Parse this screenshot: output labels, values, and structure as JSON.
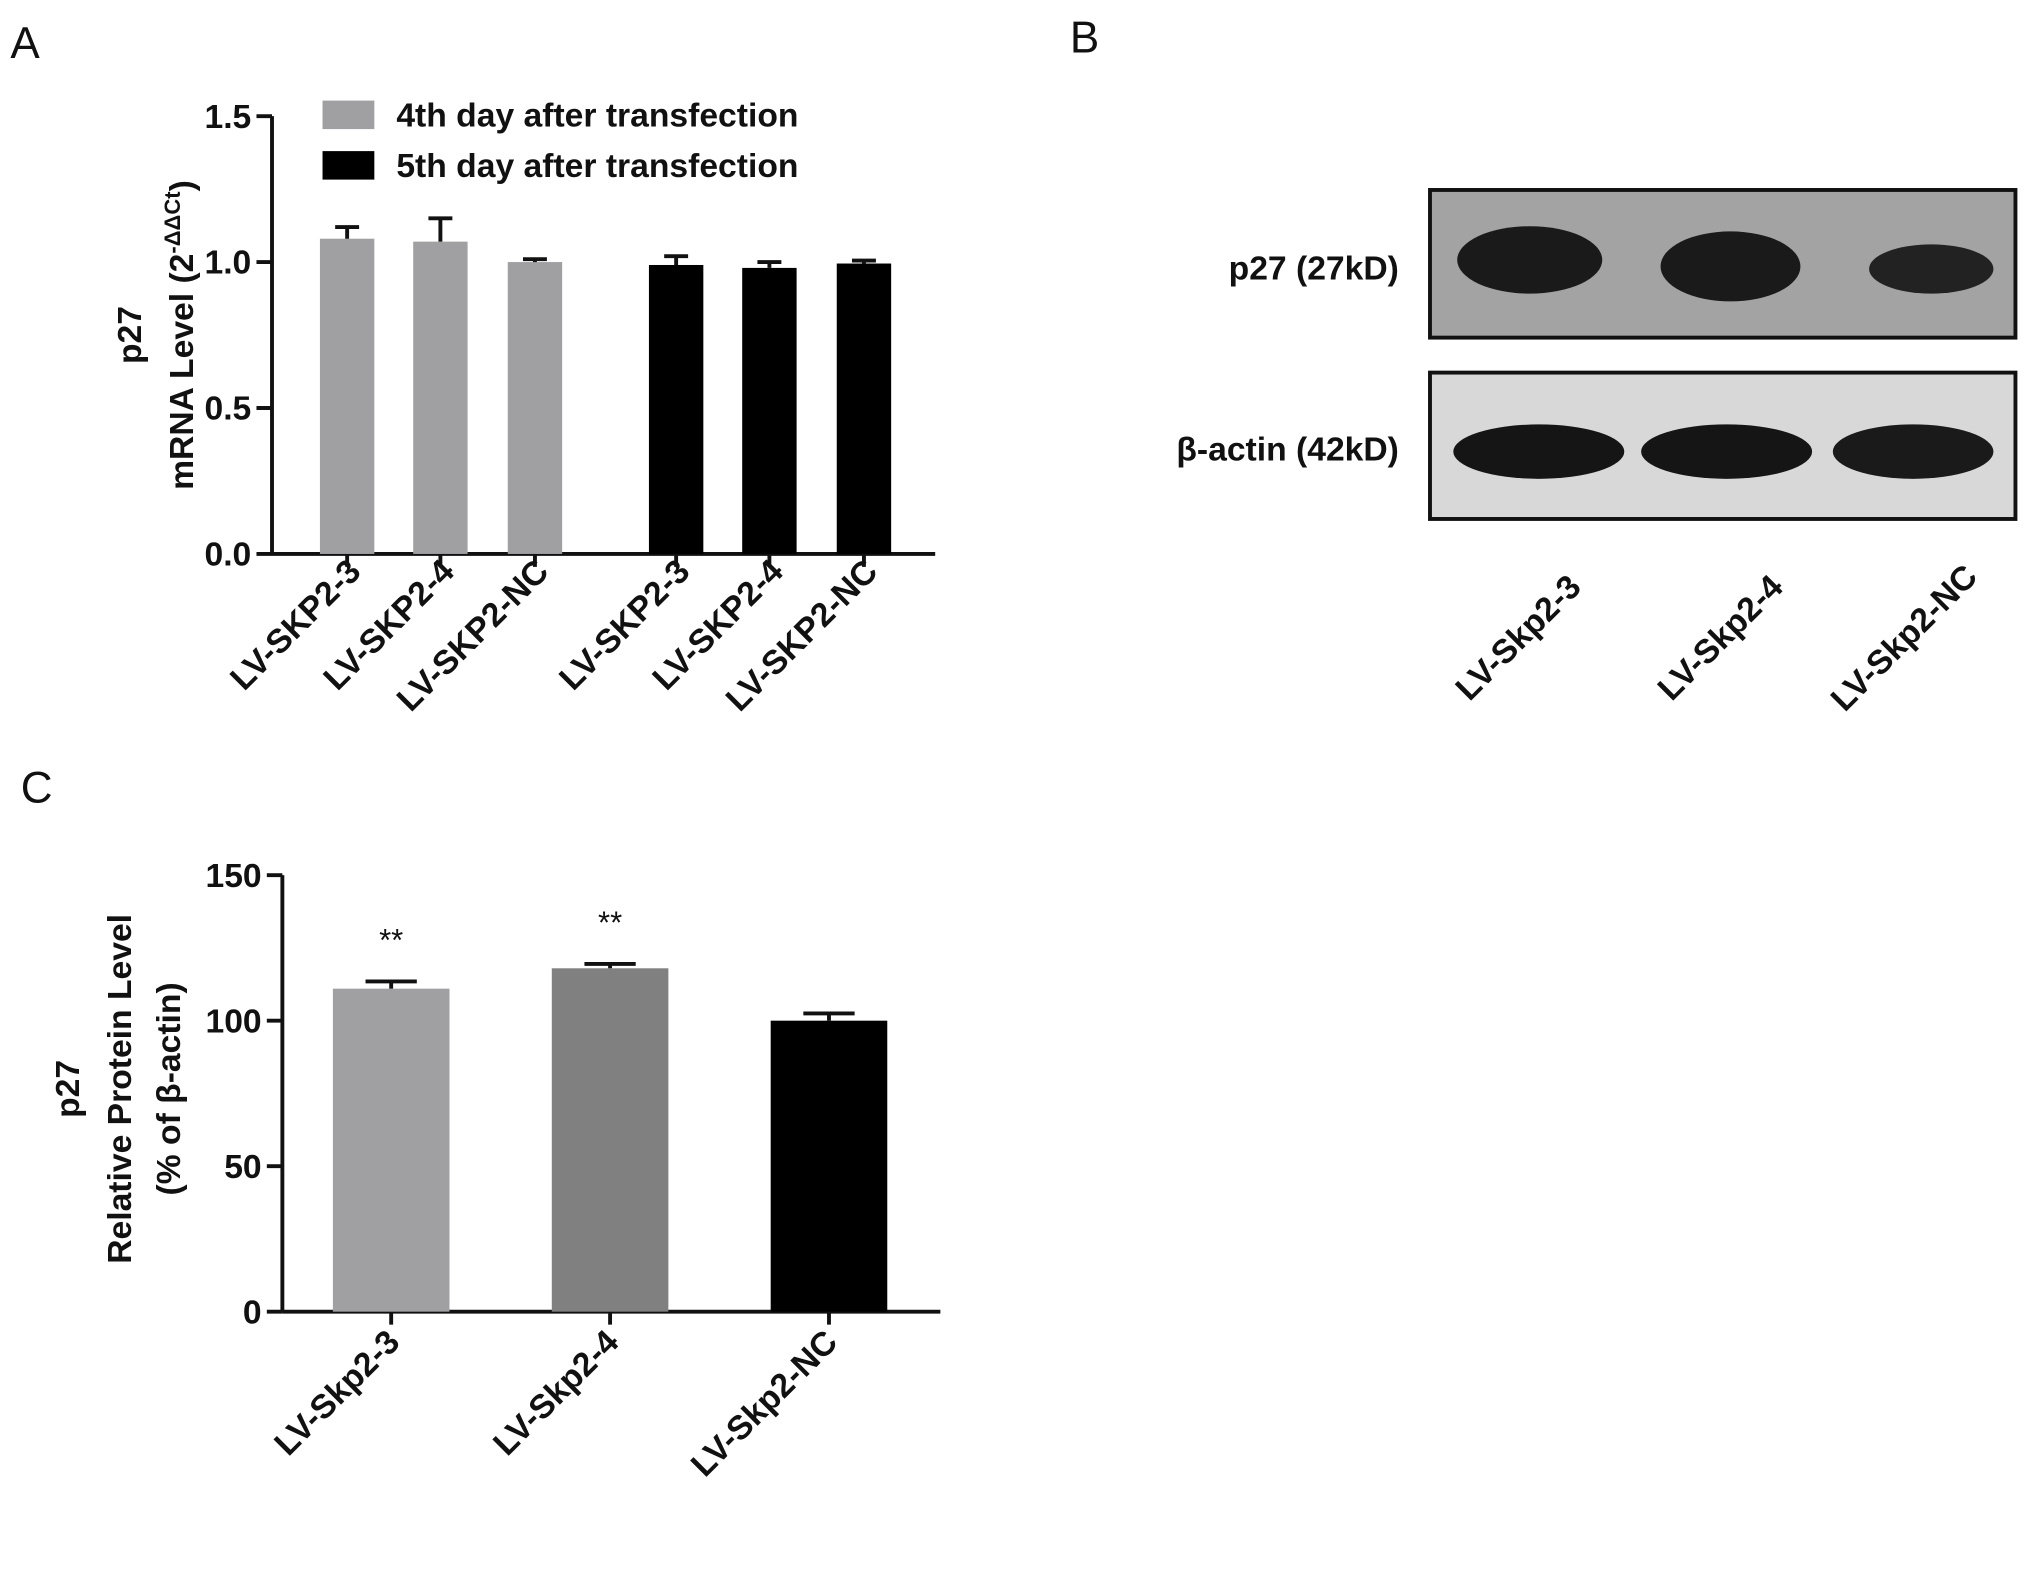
{
  "chart_data": [
    {
      "type": "bar",
      "panel": "A",
      "ylabel": [
        "p27",
        "mRNA Level (2",
        "-ΔΔCt",
        ")"
      ],
      "categories": [
        "LV-SKP2-3",
        "LV-SKP2-4",
        "LV-SKP2-NC",
        "LV-SKP2-3",
        "LV-SKP2-4",
        "LV-SKP2-NC"
      ],
      "series": [
        {
          "name": "4th day after transfection",
          "color": "#a0a0a2",
          "values": [
            1.08,
            1.07,
            1.0,
            null,
            null,
            null
          ],
          "errors": [
            0.04,
            0.08,
            0.01,
            null,
            null,
            null
          ]
        },
        {
          "name": "5th day after transfection",
          "color": "#000000",
          "values": [
            null,
            null,
            null,
            0.99,
            0.98,
            0.995
          ],
          "errors": [
            null,
            null,
            null,
            0.03,
            0.02,
            0.01
          ]
        }
      ],
      "ylim": [
        0,
        1.5
      ],
      "yticks": [
        {
          "value": 0,
          "label": "0.0"
        },
        0.5,
        {
          "value": 1,
          "label": "1.0"
        },
        1.5
      ]
    },
    {
      "type": "bar",
      "panel": "C",
      "ylabel": [
        "p27",
        "Relative Protein Level",
        "(% of β-actin)"
      ],
      "categories": [
        "LV-Skp2-3",
        "LV-Skp2-4",
        "LV-Skp2-NC"
      ],
      "values": [
        111,
        118,
        100
      ],
      "errors": [
        2.5,
        1.5,
        2.5
      ],
      "colors": [
        "#a0a0a2",
        "#808080",
        "#000000"
      ],
      "annotations": [
        "**",
        "**",
        null
      ],
      "ylim": [
        0,
        150
      ],
      "yticks": [
        0,
        50,
        100,
        150
      ]
    }
  ],
  "blot": {
    "panel": "B",
    "rows": [
      "p27 (27kD)",
      "β-actin (42kD)"
    ],
    "lanes": [
      "LV-Skp2-3",
      "LV-Skp2-4",
      "LV-Skp2-NC"
    ]
  }
}
